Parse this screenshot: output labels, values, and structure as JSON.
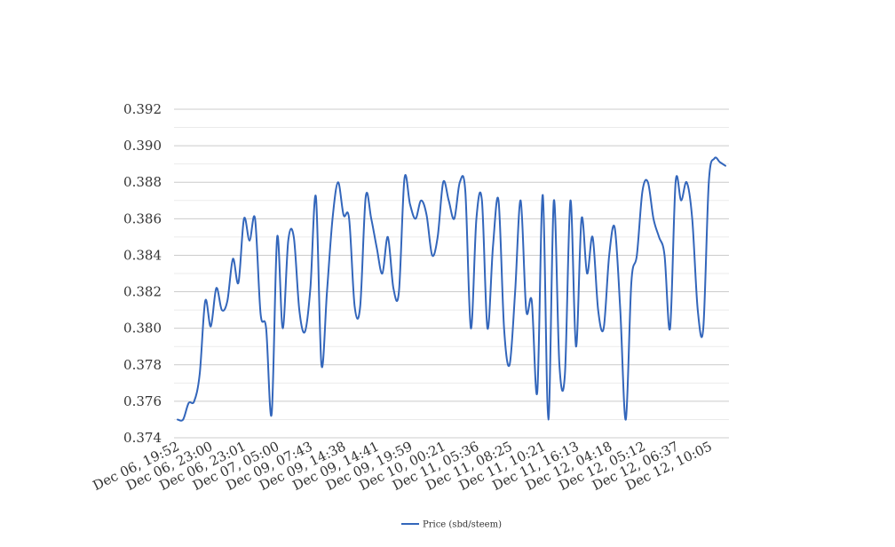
{
  "chart_data": {
    "type": "line",
    "title": "",
    "xlabel": "",
    "ylabel": "",
    "ylim": [
      0.374,
      0.392
    ],
    "y_ticks": [
      "0.374",
      "0.376",
      "0.378",
      "0.380",
      "0.382",
      "0.384",
      "0.386",
      "0.388",
      "0.390",
      "0.392"
    ],
    "x_tick_labels": [
      "Dec 06, 19:52",
      "Dec 06, 23:00",
      "Dec 06, 23:01",
      "Dec 07, 05:00",
      "Dec 09, 07:43",
      "Dec 09, 14:38",
      "Dec 09, 14:41",
      "Dec 09, 19:59",
      "Dec 10, 00:21",
      "Dec 11, 05:36",
      "Dec 11, 08:25",
      "Dec 11, 10:21",
      "Dec 11, 16:13",
      "Dec 12, 04:18",
      "Dec 12, 05:12",
      "Dec 12, 06:37",
      "Dec 12, 10:05"
    ],
    "grid": true,
    "legend_position": "bottom",
    "series_color": "#3366bb",
    "series": [
      {
        "name": "Price (sbd/steem)",
        "values": [
          0.375,
          0.375,
          0.3759,
          0.376,
          0.3775,
          0.3815,
          0.3801,
          0.3822,
          0.381,
          0.3815,
          0.3838,
          0.3825,
          0.386,
          0.3848,
          0.386,
          0.3808,
          0.38,
          0.3753,
          0.385,
          0.38,
          0.3848,
          0.385,
          0.381,
          0.3798,
          0.3822,
          0.3872,
          0.378,
          0.382,
          0.386,
          0.388,
          0.3862,
          0.386,
          0.3812,
          0.3812,
          0.3872,
          0.386,
          0.3844,
          0.383,
          0.385,
          0.3822,
          0.382,
          0.3882,
          0.3868,
          0.386,
          0.387,
          0.3862,
          0.384,
          0.385,
          0.388,
          0.387,
          0.386,
          0.388,
          0.3875,
          0.38,
          0.386,
          0.387,
          0.38,
          0.3845,
          0.387,
          0.38,
          0.378,
          0.382,
          0.387,
          0.381,
          0.3815,
          0.3765,
          0.3873,
          0.375,
          0.387,
          0.378,
          0.3775,
          0.387,
          0.379,
          0.386,
          0.383,
          0.385,
          0.381,
          0.38,
          0.384,
          0.3855,
          0.381,
          0.375,
          0.3825,
          0.384,
          0.3875,
          0.388,
          0.386,
          0.385,
          0.384,
          0.38,
          0.388,
          0.387,
          0.388,
          0.386,
          0.381,
          0.38,
          0.388,
          0.3893,
          0.3891,
          0.3889
        ]
      }
    ]
  }
}
